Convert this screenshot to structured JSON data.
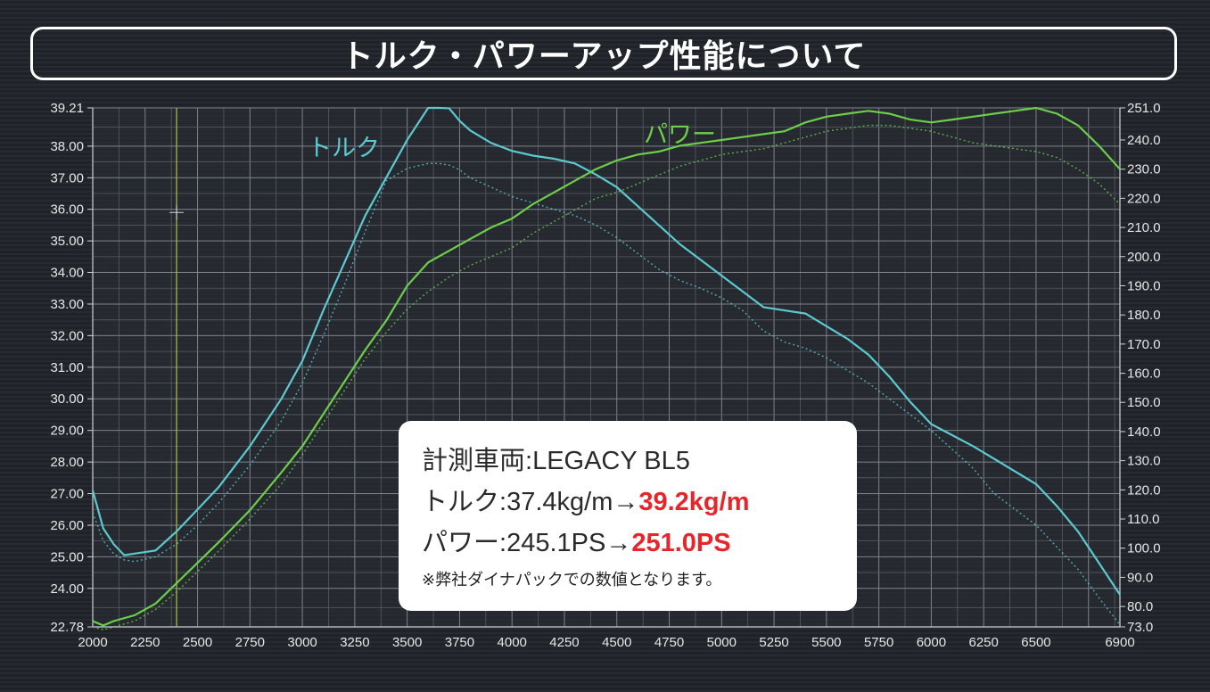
{
  "title": "トルク・パワーアップ性能について",
  "info": {
    "vehicle_label": "計測車両:",
    "vehicle": "LEGACY BL5",
    "torque_label": "トルク:",
    "torque_before": "37.4kg/m",
    "arrow": "→",
    "torque_after": "39.2kg/m",
    "power_label": "パワー:",
    "power_before": "245.1PS",
    "power_after": "251.0PS",
    "note": "※弊社ダイナパックでの数値となります。"
  },
  "colors": {
    "torque": "#5cc9cf",
    "power": "#6dce4a",
    "cursor": "#a9b740",
    "highlight": "#e8252a"
  },
  "chart_data": {
    "type": "line",
    "x_ticks": [
      2000,
      2250,
      2500,
      2750,
      3000,
      3250,
      3500,
      3750,
      4000,
      4250,
      4500,
      4750,
      5000,
      5250,
      5500,
      5750,
      6000,
      6250,
      6500,
      6900
    ],
    "x_tick_labels": [
      "2000",
      "2250",
      "2500",
      "2750",
      "3000",
      "3250",
      "3500",
      "3750",
      "4000",
      "4250",
      "4500",
      "4750",
      "5000",
      "5250",
      "5500",
      "5750",
      "6000",
      "6250",
      "6500",
      "6900"
    ],
    "xlim": [
      2000,
      6900
    ],
    "y_left": {
      "range": [
        22.78,
        39.21
      ],
      "ticks": [
        22.78,
        24,
        25,
        26,
        27,
        28,
        29,
        30,
        31,
        32,
        33,
        34,
        35,
        36,
        37,
        38,
        39.21
      ],
      "tick_labels": [
        "22.78",
        "24.00",
        "25.00",
        "26.00",
        "27.00",
        "28.00",
        "29.00",
        "30.00",
        "31.00",
        "32.00",
        "33.00",
        "34.00",
        "35.00",
        "36.00",
        "37.00",
        "38.00",
        "39.21"
      ]
    },
    "y_right": {
      "range": [
        73,
        251
      ],
      "ticks": [
        73,
        80,
        90,
        100,
        110,
        120,
        130,
        140,
        150,
        160,
        170,
        180,
        190,
        200,
        210,
        220,
        230,
        240,
        251
      ],
      "tick_labels": [
        "73.0",
        "80.0",
        "90.0",
        "100.0",
        "110.0",
        "120.0",
        "130.0",
        "140.0",
        "150.0",
        "160.0",
        "170.0",
        "180.0",
        "190.0",
        "200.0",
        "210.0",
        "220.0",
        "230.0",
        "240.0",
        "251.0"
      ]
    },
    "cursor_x": 2400,
    "grid": true,
    "series": [
      {
        "name": "トルク",
        "axis": "left",
        "style": "solid",
        "x": [
          2000,
          2050,
          2100,
          2150,
          2200,
          2300,
          2400,
          2500,
          2600,
          2750,
          2900,
          3000,
          3100,
          3200,
          3300,
          3400,
          3500,
          3600,
          3650,
          3700,
          3750,
          3800,
          3900,
          4000,
          4100,
          4200,
          4300,
          4400,
          4500,
          4600,
          4700,
          4800,
          4900,
          5000,
          5100,
          5200,
          5300,
          5400,
          5500,
          5600,
          5700,
          5800,
          5900,
          6000,
          6100,
          6200,
          6300,
          6400,
          6500,
          6600,
          6700,
          6800,
          6900
        ],
        "y": [
          27.1,
          25.9,
          25.4,
          25.05,
          25.1,
          25.2,
          25.8,
          26.5,
          27.2,
          28.5,
          30.0,
          31.2,
          32.8,
          34.3,
          35.8,
          37.0,
          38.2,
          39.21,
          39.21,
          39.2,
          38.8,
          38.5,
          38.1,
          37.85,
          37.7,
          37.6,
          37.45,
          37.1,
          36.7,
          36.1,
          35.5,
          34.9,
          34.4,
          33.9,
          33.4,
          32.9,
          32.8,
          32.7,
          32.3,
          31.9,
          31.4,
          30.7,
          29.9,
          29.2,
          28.85,
          28.5,
          28.1,
          27.7,
          27.3,
          26.6,
          25.8,
          24.8,
          23.8
        ]
      },
      {
        "name": "",
        "axis": "left",
        "style": "dotted",
        "x": [
          2000,
          2050,
          2100,
          2150,
          2200,
          2300,
          2400,
          2500,
          2600,
          2750,
          2900,
          3000,
          3100,
          3200,
          3300,
          3400,
          3500,
          3600,
          3650,
          3700,
          3750,
          3800,
          3900,
          4000,
          4100,
          4200,
          4300,
          4400,
          4500,
          4600,
          4700,
          4800,
          4900,
          5000,
          5100,
          5200,
          5300,
          5400,
          5500,
          5600,
          5700,
          5800,
          5900,
          6000,
          6100,
          6200,
          6300,
          6400,
          6500,
          6600,
          6700,
          6800,
          6900
        ],
        "y": [
          26.4,
          25.5,
          25.1,
          24.9,
          24.85,
          25.0,
          25.4,
          26.0,
          26.7,
          27.9,
          29.3,
          30.5,
          32.0,
          33.6,
          35.3,
          36.9,
          37.3,
          37.45,
          37.45,
          37.4,
          37.25,
          37.0,
          36.7,
          36.4,
          36.2,
          36.0,
          35.8,
          35.5,
          35.1,
          34.6,
          34.1,
          33.75,
          33.5,
          33.2,
          32.8,
          32.15,
          31.8,
          31.6,
          31.3,
          30.9,
          30.5,
          30.0,
          29.5,
          29.0,
          28.4,
          27.8,
          27.0,
          26.5,
          26.0,
          25.3,
          24.6,
          23.7,
          22.85
        ]
      },
      {
        "name": "パワー",
        "axis": "right",
        "style": "solid",
        "x": [
          2000,
          2050,
          2100,
          2200,
          2300,
          2400,
          2500,
          2600,
          2750,
          2900,
          3000,
          3100,
          3200,
          3300,
          3400,
          3500,
          3600,
          3700,
          3800,
          3900,
          4000,
          4100,
          4200,
          4300,
          4400,
          4500,
          4600,
          4700,
          4800,
          4900,
          5000,
          5100,
          5200,
          5300,
          5400,
          5500,
          5600,
          5700,
          5800,
          5900,
          6000,
          6100,
          6200,
          6300,
          6400,
          6500,
          6600,
          6700,
          6800,
          6900
        ],
        "y": [
          75,
          73.5,
          75,
          77,
          81,
          88,
          95,
          102,
          113,
          126,
          135,
          146,
          157,
          168,
          178,
          190,
          198,
          202,
          206,
          210,
          213,
          218,
          222,
          226,
          230,
          233,
          235,
          236,
          238,
          239,
          240,
          241,
          242,
          243,
          246,
          248,
          249,
          250,
          249,
          247,
          246,
          247,
          248,
          249,
          250,
          251,
          249,
          245,
          238,
          230
        ]
      },
      {
        "name": "",
        "axis": "right",
        "style": "dotted",
        "x": [
          2000,
          2050,
          2100,
          2200,
          2300,
          2400,
          2500,
          2600,
          2750,
          2900,
          3000,
          3100,
          3200,
          3300,
          3400,
          3500,
          3600,
          3700,
          3800,
          3900,
          4000,
          4100,
          4200,
          4300,
          4400,
          4500,
          4600,
          4700,
          4800,
          4900,
          5000,
          5100,
          5200,
          5300,
          5400,
          5500,
          5600,
          5700,
          5800,
          5900,
          6000,
          6100,
          6200,
          6300,
          6400,
          6500,
          6600,
          6700,
          6800,
          6900
        ],
        "y": [
          73,
          72,
          73,
          75,
          79,
          85,
          92,
          99,
          110,
          122,
          132,
          143,
          154,
          165,
          174,
          182,
          188,
          193,
          197,
          200,
          203,
          208,
          212,
          216,
          220,
          222,
          225,
          228,
          231,
          233,
          235,
          236,
          237,
          239,
          241,
          243,
          244,
          245,
          245,
          244,
          243,
          241,
          239,
          238,
          237,
          236,
          234,
          230,
          225,
          218
        ]
      }
    ]
  }
}
